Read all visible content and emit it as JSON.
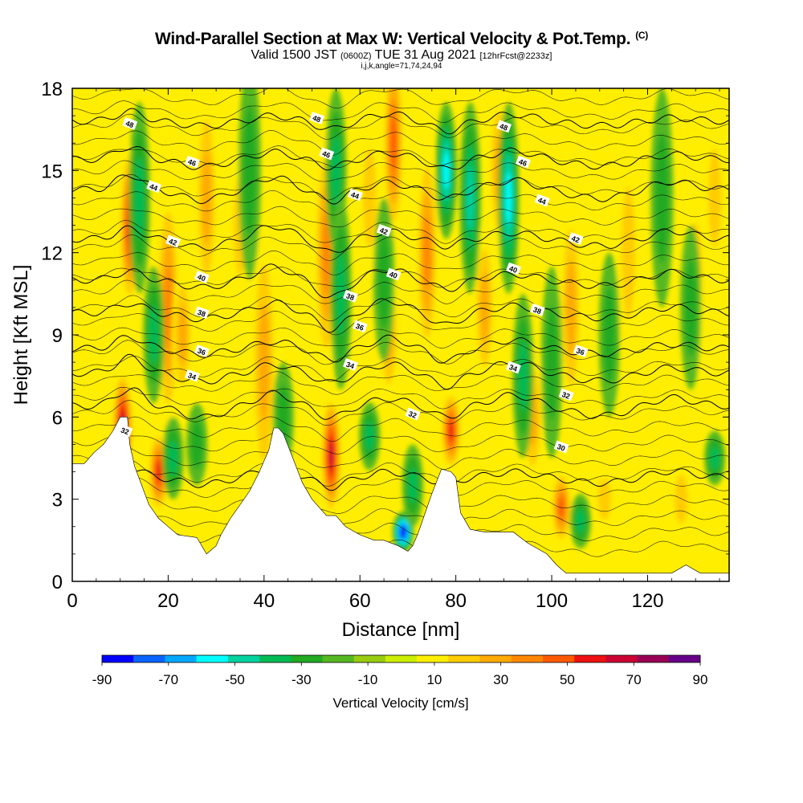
{
  "header": {
    "title": "Wind-Parallel Section at Max W: Vertical Velocity & Pot.Temp.",
    "copyright": "(C)",
    "valid_prefix": "Valid 1500 JST",
    "valid_utc": "(0600Z)",
    "valid_date": "TUE 31 Aug 2021",
    "forecast": "[12hrFcst@2233z]",
    "params": "i,j,k,angle=71,74,24,94"
  },
  "chart_data": {
    "type": "heatmap",
    "xlabel": "Distance [nm]",
    "ylabel": "Height [Kft MSL]",
    "xlim": [
      0,
      137
    ],
    "ylim": [
      0,
      18
    ],
    "x_ticks": [
      0,
      20,
      40,
      60,
      80,
      100,
      120
    ],
    "y_ticks": [
      0,
      3,
      6,
      9,
      12,
      15,
      18
    ],
    "colorbar": {
      "label": "Vertical Velocity [cm/s]",
      "tick_labels": [
        "-90",
        "-70",
        "-50",
        "-30",
        "-10",
        "10",
        "30",
        "50",
        "70",
        "90"
      ],
      "levels": [
        -90,
        -80,
        -70,
        -60,
        -50,
        -40,
        -30,
        -20,
        -10,
        0,
        10,
        20,
        30,
        40,
        50,
        60,
        70,
        80,
        90
      ],
      "colors": [
        "#0000ff",
        "#0a64ff",
        "#00a8ff",
        "#00ffff",
        "#00d2a0",
        "#00bb55",
        "#22aa22",
        "#55b822",
        "#99cc11",
        "#ccee00",
        "#ffee00",
        "#ffcc00",
        "#ffaa00",
        "#ff8800",
        "#ff5a00",
        "#ee1111",
        "#cc0033",
        "#990055",
        "#660088"
      ]
    },
    "terrain": [
      [
        0,
        4.3
      ],
      [
        2.5,
        4.3
      ],
      [
        4.5,
        4.7
      ],
      [
        6.5,
        5.0
      ],
      [
        8.5,
        5.5
      ],
      [
        10,
        6.0
      ],
      [
        11.5,
        6.0
      ],
      [
        12,
        5.0
      ],
      [
        13,
        4.2
      ],
      [
        14.5,
        3.5
      ],
      [
        16,
        2.8
      ],
      [
        18,
        2.3
      ],
      [
        20,
        2.0
      ],
      [
        22,
        1.7
      ],
      [
        26,
        1.6
      ],
      [
        28,
        1.0
      ],
      [
        30,
        1.3
      ],
      [
        31,
        1.7
      ],
      [
        33,
        2.3
      ],
      [
        35,
        2.8
      ],
      [
        37,
        3.3
      ],
      [
        39,
        4.0
      ],
      [
        41,
        4.8
      ],
      [
        42,
        5.6
      ],
      [
        43,
        5.6
      ],
      [
        44,
        5.4
      ],
      [
        46,
        4.5
      ],
      [
        48,
        3.6
      ],
      [
        50,
        3.0
      ],
      [
        53,
        2.4
      ],
      [
        55,
        2.4
      ],
      [
        57,
        2.0
      ],
      [
        60,
        1.7
      ],
      [
        63,
        1.5
      ],
      [
        65,
        1.5
      ],
      [
        68,
        1.3
      ],
      [
        70,
        1.1
      ],
      [
        71,
        1.3
      ],
      [
        72,
        1.7
      ],
      [
        73,
        2.2
      ],
      [
        75,
        3.2
      ],
      [
        77,
        4.1
      ],
      [
        79,
        4.0
      ],
      [
        80,
        3.8
      ],
      [
        81,
        2.5
      ],
      [
        83,
        1.9
      ],
      [
        86,
        1.8
      ],
      [
        89,
        1.8
      ],
      [
        92,
        1.8
      ],
      [
        95,
        1.4
      ],
      [
        97,
        1.2
      ],
      [
        99,
        1.0
      ],
      [
        101,
        0.6
      ],
      [
        103,
        0.3
      ],
      [
        106,
        0.3
      ],
      [
        110,
        0.3
      ],
      [
        120,
        0.3
      ],
      [
        125,
        0.3
      ],
      [
        128,
        0.6
      ],
      [
        131,
        0.3
      ],
      [
        133,
        0.3
      ],
      [
        137,
        0.3
      ]
    ],
    "updrafts": [
      [
        10.5,
        5.5,
        4.5,
        80
      ],
      [
        12,
        13,
        6,
        60
      ],
      [
        18,
        4,
        3,
        60
      ],
      [
        20,
        10,
        9,
        40
      ],
      [
        23,
        9,
        5,
        30
      ],
      [
        28,
        14,
        8,
        35
      ],
      [
        35,
        13,
        6,
        25
      ],
      [
        40,
        8,
        10,
        35
      ],
      [
        54,
        4.6,
        4.5,
        75
      ],
      [
        53,
        12,
        9,
        40
      ],
      [
        62,
        14,
        6,
        25
      ],
      [
        66,
        9,
        5,
        30
      ],
      [
        67,
        16,
        7,
        50
      ],
      [
        74,
        12,
        8,
        45
      ],
      [
        79,
        5.5,
        3,
        60
      ],
      [
        86,
        10,
        6,
        30
      ],
      [
        89,
        15,
        6,
        30
      ],
      [
        96,
        6,
        5,
        30
      ],
      [
        102,
        2.7,
        2.8,
        55
      ],
      [
        104,
        10,
        8,
        30
      ],
      [
        111,
        3,
        2.5,
        20
      ],
      [
        116,
        12,
        8,
        25
      ],
      [
        127,
        3,
        3,
        20
      ],
      [
        130,
        11,
        7,
        20
      ],
      [
        134,
        14,
        6,
        20
      ]
    ],
    "downdrafts": [
      [
        14,
        14,
        7,
        35
      ],
      [
        17,
        9,
        5,
        30
      ],
      [
        21,
        4.5,
        3,
        30
      ],
      [
        26,
        5,
        3,
        25
      ],
      [
        37,
        15,
        8,
        25
      ],
      [
        44,
        6,
        4,
        25
      ],
      [
        55,
        15,
        6,
        35
      ],
      [
        56,
        10.5,
        7,
        30
      ],
      [
        62,
        5.3,
        2.5,
        30
      ],
      [
        65,
        11,
        6,
        25
      ],
      [
        69,
        1.8,
        1.5,
        90
      ],
      [
        71,
        3.5,
        3,
        35
      ],
      [
        78,
        15,
        5,
        55
      ],
      [
        83,
        14,
        7,
        40
      ],
      [
        91,
        14,
        7,
        50
      ],
      [
        94,
        7.5,
        6,
        30
      ],
      [
        100,
        8,
        7,
        25
      ],
      [
        106,
        2.2,
        2,
        35
      ],
      [
        112,
        9,
        6,
        20
      ],
      [
        123,
        14,
        8,
        20
      ],
      [
        129,
        10,
        6,
        20
      ],
      [
        134,
        4.5,
        2,
        35
      ]
    ],
    "isentropes": [
      {
        "label": "30",
        "y": 3.8,
        "amp": 0.35
      },
      {
        "label": "32",
        "y": 6.4,
        "amp": 0.55
      },
      {
        "label": "34",
        "y": 7.6,
        "amp": 0.5
      },
      {
        "label": "36",
        "y": 8.5,
        "amp": 0.45
      },
      {
        "label": "38",
        "y": 9.8,
        "amp": 0.5
      },
      {
        "label": "40",
        "y": 11.0,
        "amp": 0.5
      },
      {
        "label": "42",
        "y": 12.5,
        "amp": 0.45
      },
      {
        "label": "44",
        "y": 14.3,
        "amp": 0.5
      },
      {
        "label": "46",
        "y": 15.4,
        "amp": 0.4
      },
      {
        "label": "48",
        "y": 16.8,
        "amp": 0.35
      }
    ],
    "contour_labels": [
      {
        "text": "48",
        "x": 12,
        "y": 16.7
      },
      {
        "text": "46",
        "x": 25,
        "y": 15.3
      },
      {
        "text": "44",
        "x": 17,
        "y": 14.4
      },
      {
        "text": "42",
        "x": 21,
        "y": 12.4
      },
      {
        "text": "40",
        "x": 27,
        "y": 11.1
      },
      {
        "text": "38",
        "x": 27,
        "y": 9.8
      },
      {
        "text": "36",
        "x": 27,
        "y": 8.4
      },
      {
        "text": "34",
        "x": 25,
        "y": 7.5
      },
      {
        "text": "32",
        "x": 11,
        "y": 5.5
      },
      {
        "text": "48",
        "x": 51,
        "y": 16.9
      },
      {
        "text": "46",
        "x": 53,
        "y": 15.6
      },
      {
        "text": "44",
        "x": 59,
        "y": 14.1
      },
      {
        "text": "42",
        "x": 65,
        "y": 12.8
      },
      {
        "text": "40",
        "x": 67,
        "y": 11.2
      },
      {
        "text": "38",
        "x": 58,
        "y": 10.4
      },
      {
        "text": "36",
        "x": 60,
        "y": 9.3
      },
      {
        "text": "34",
        "x": 58,
        "y": 7.9
      },
      {
        "text": "32",
        "x": 71,
        "y": 6.1
      },
      {
        "text": "48",
        "x": 90,
        "y": 16.6
      },
      {
        "text": "46",
        "x": 94,
        "y": 15.3
      },
      {
        "text": "44",
        "x": 98,
        "y": 13.9
      },
      {
        "text": "42",
        "x": 105,
        "y": 12.5
      },
      {
        "text": "40",
        "x": 92,
        "y": 11.4
      },
      {
        "text": "38",
        "x": 97,
        "y": 9.9
      },
      {
        "text": "36",
        "x": 106,
        "y": 8.4
      },
      {
        "text": "34",
        "x": 92,
        "y": 7.8
      },
      {
        "text": "32",
        "x": 103,
        "y": 6.8
      },
      {
        "text": "30",
        "x": 102,
        "y": 4.9
      }
    ]
  }
}
